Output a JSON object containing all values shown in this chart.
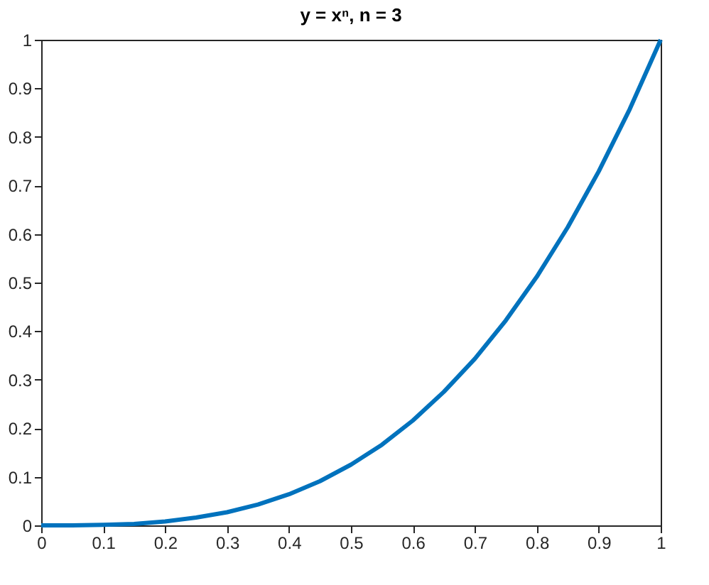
{
  "chart_data": {
    "type": "line",
    "title": "y = xⁿ,  n = 3",
    "x": [
      0,
      0.05,
      0.1,
      0.15,
      0.2,
      0.25,
      0.3,
      0.35,
      0.4,
      0.45,
      0.5,
      0.55,
      0.6,
      0.65,
      0.7,
      0.75,
      0.8,
      0.85,
      0.9,
      0.95,
      1
    ],
    "series": [
      {
        "color": "#0072bd",
        "values": [
          0,
          0,
          0.001,
          0.003,
          0.008,
          0.016,
          0.027,
          0.043,
          0.064,
          0.091,
          0.125,
          0.166,
          0.216,
          0.275,
          0.343,
          0.422,
          0.512,
          0.614,
          0.729,
          0.857,
          1
        ]
      }
    ],
    "xlim": [
      0,
      1
    ],
    "ylim": [
      0,
      1
    ],
    "xticks": [
      0,
      0.1,
      0.2,
      0.3,
      0.4,
      0.5,
      0.6,
      0.7,
      0.8,
      0.9,
      1
    ],
    "yticks": [
      0,
      0.1,
      0.2,
      0.3,
      0.4,
      0.5,
      0.6,
      0.7,
      0.8,
      0.9,
      1
    ],
    "grid": false,
    "marker": "none",
    "line_style": "solid"
  }
}
